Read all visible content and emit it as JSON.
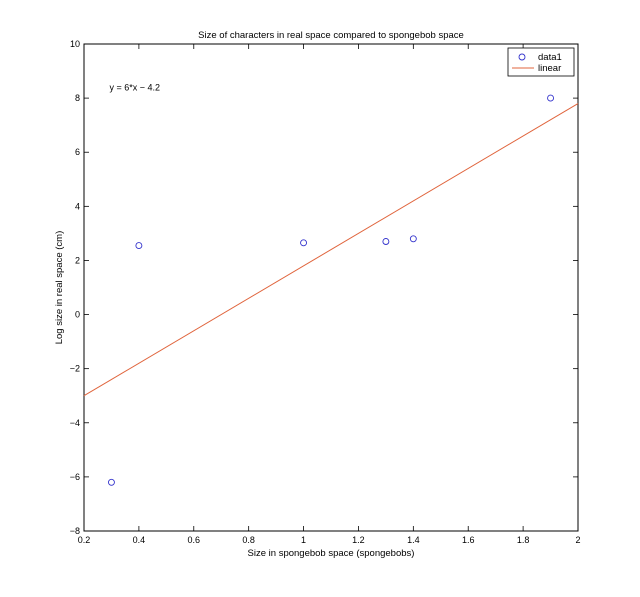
{
  "chart_data": {
    "type": "scatter",
    "title": "Size of characters in real space compared to spongebob space",
    "xlabel": "Size in spongebob space (spongebobs)",
    "ylabel": "Log size in real space (cm)",
    "xlim": [
      0.2,
      2
    ],
    "ylim": [
      -8,
      10
    ],
    "xticks": [
      0.2,
      0.4,
      0.6,
      0.8,
      1,
      1.2,
      1.4,
      1.6,
      1.8,
      2
    ],
    "yticks": [
      -8,
      -6,
      -4,
      -2,
      0,
      2,
      4,
      6,
      8,
      10
    ],
    "xtick_labels": [
      "0.2",
      "0.4",
      "0.6",
      "0.8",
      "1",
      "1.2",
      "1.4",
      "1.6",
      "1.8",
      "2"
    ],
    "ytick_labels": [
      "−8",
      "−6",
      "−4",
      "−2",
      "0",
      "2",
      "4",
      "6",
      "8",
      "10"
    ],
    "grid": false,
    "legend_position": "top-right",
    "series": [
      {
        "name": "data1",
        "kind": "scatter",
        "marker": "circle",
        "color": "#3333cc",
        "x": [
          0.3,
          0.4,
          1.0,
          1.3,
          1.4,
          1.9
        ],
        "y": [
          -6.2,
          2.55,
          2.65,
          2.7,
          2.8,
          8.0
        ]
      },
      {
        "name": "linear",
        "kind": "line",
        "color": "#e0643c",
        "slope": 6,
        "intercept": -4.2,
        "x": [
          0.2,
          2
        ],
        "y": [
          -3.0,
          7.8
        ]
      }
    ],
    "annotation": {
      "text": "y = 6*x − 4.2",
      "x": 0.3,
      "y": 8.4
    }
  }
}
